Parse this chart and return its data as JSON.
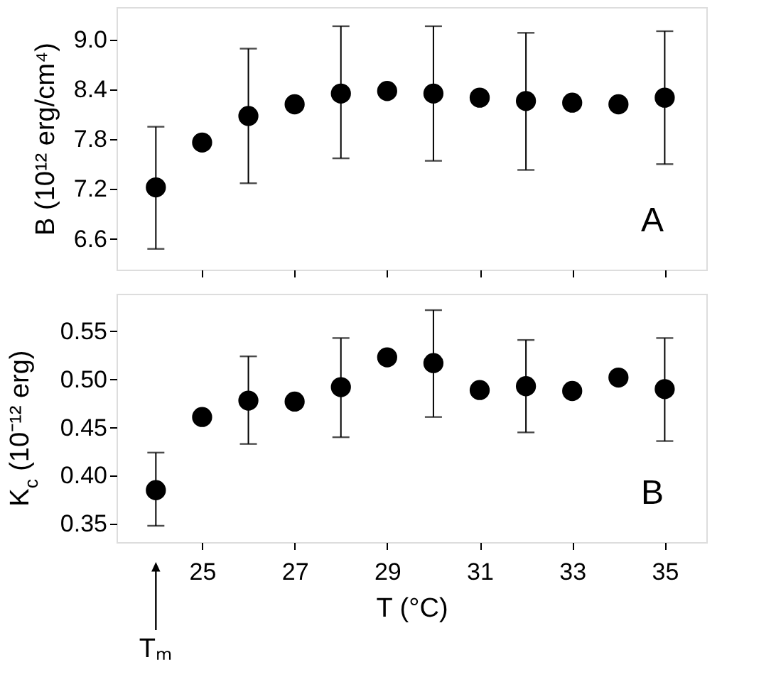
{
  "chart_data": [
    {
      "type": "scatter",
      "ylabel": "B (10¹² erg/cm⁴)",
      "x": [
        24,
        25,
        26,
        27,
        28,
        29,
        30,
        31,
        32,
        33,
        34,
        35
      ],
      "series": [
        {
          "color": "#000000",
          "values": [
            7.22,
            7.76,
            8.08,
            8.22,
            8.35,
            8.38,
            8.35,
            8.3,
            8.26,
            8.24,
            8.22,
            8.3
          ],
          "errors": [
            [
              6.48,
              7.95
            ],
            null,
            [
              7.27,
              8.89
            ],
            null,
            [
              7.57,
              9.16
            ],
            null,
            [
              7.54,
              9.16
            ],
            null,
            [
              7.43,
              9.08
            ],
            null,
            null,
            [
              7.5,
              9.1
            ]
          ]
        }
      ],
      "xlim": [
        23.15,
        35.9
      ],
      "xticks": [
        25,
        27,
        29,
        31,
        33,
        35
      ],
      "ylim": [
        6.23,
        9.39
      ],
      "yticks": [
        {
          "value": 6.6,
          "label": "6.6"
        },
        {
          "value": 7.2,
          "label": "7.2"
        },
        {
          "value": 7.8,
          "label": "7.8"
        },
        {
          "value": 8.4,
          "label": "8.4"
        },
        {
          "value": 9.0,
          "label": "9.0"
        }
      ],
      "marker": "circle",
      "tick_labels": "y",
      "annotations": [
        "A"
      ]
    },
    {
      "type": "scatter",
      "xlabel": "T (°C)",
      "ylabel": "K$_{c}$ (10⁻¹² erg)",
      "x": [
        24,
        25,
        26,
        27,
        28,
        29,
        30,
        31,
        32,
        33,
        34,
        35
      ],
      "series": [
        {
          "color": "#000000",
          "values": [
            0.385,
            0.461,
            0.478,
            0.477,
            0.492,
            0.523,
            0.517,
            0.489,
            0.493,
            0.488,
            0.502,
            0.49
          ],
          "errors": [
            [
              0.348,
              0.424
            ],
            null,
            [
              0.433,
              0.524
            ],
            null,
            [
              0.44,
              0.543
            ],
            null,
            [
              0.461,
              0.572
            ],
            null,
            [
              0.445,
              0.541
            ],
            null,
            null,
            [
              0.436,
              0.543
            ]
          ]
        }
      ],
      "xlim": [
        23.15,
        35.9
      ],
      "xticks": [
        25,
        27,
        29,
        31,
        33,
        35
      ],
      "ylim": [
        0.331,
        0.589
      ],
      "yticks": [
        {
          "value": 0.35,
          "label": "0.35"
        },
        {
          "value": 0.4,
          "label": "0.40"
        },
        {
          "value": 0.45,
          "label": "0.45"
        },
        {
          "value": 0.5,
          "label": "0.50"
        },
        {
          "value": 0.55,
          "label": "0.55"
        }
      ],
      "marker": "circle",
      "annotations": [
        "B",
        "Tₘ"
      ]
    }
  ]
}
